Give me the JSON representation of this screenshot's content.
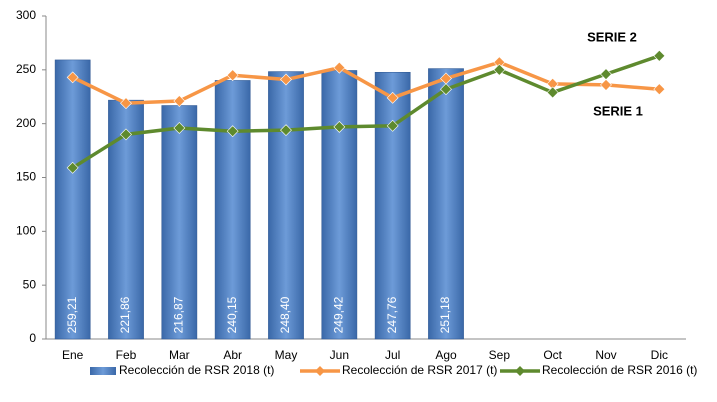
{
  "chart_data": {
    "type": "bar_line",
    "categories": [
      "Ene",
      "Feb",
      "Mar",
      "Abr",
      "May",
      "Jun",
      "Jul",
      "Ago",
      "Sep",
      "Oct",
      "Nov",
      "Dic"
    ],
    "series": [
      {
        "name": "Recolección de RSR 2018 (t)",
        "type": "bar",
        "color": "#4f81bd",
        "values": [
          259.21,
          221.86,
          216.87,
          240.15,
          248.4,
          249.42,
          247.76,
          251.18,
          null,
          null,
          null,
          null
        ],
        "value_labels": [
          "259,21",
          "221,86",
          "216,87",
          "240,15",
          "248,40",
          "249,42",
          "247,76",
          "251,18",
          null,
          null,
          null,
          null
        ]
      },
      {
        "name": "Recolección de RSR 2017 (t)",
        "type": "line",
        "color": "#f79646",
        "values": [
          243,
          219,
          221,
          245,
          241,
          252,
          224,
          242,
          257,
          237,
          236,
          232
        ]
      },
      {
        "name": "Recolección de RSR 2016 (t)",
        "type": "line",
        "color": "#5e8a2e",
        "values": [
          159,
          190,
          196,
          193,
          194,
          197,
          198,
          232,
          250,
          229,
          246,
          263
        ]
      }
    ],
    "annotations": [
      "SERIE 2",
      "SERIE 1"
    ],
    "ylim": [
      0,
      300
    ],
    "yticks": [
      0,
      50,
      100,
      150,
      200,
      250,
      300
    ],
    "grid": false,
    "legend": "bottom"
  }
}
